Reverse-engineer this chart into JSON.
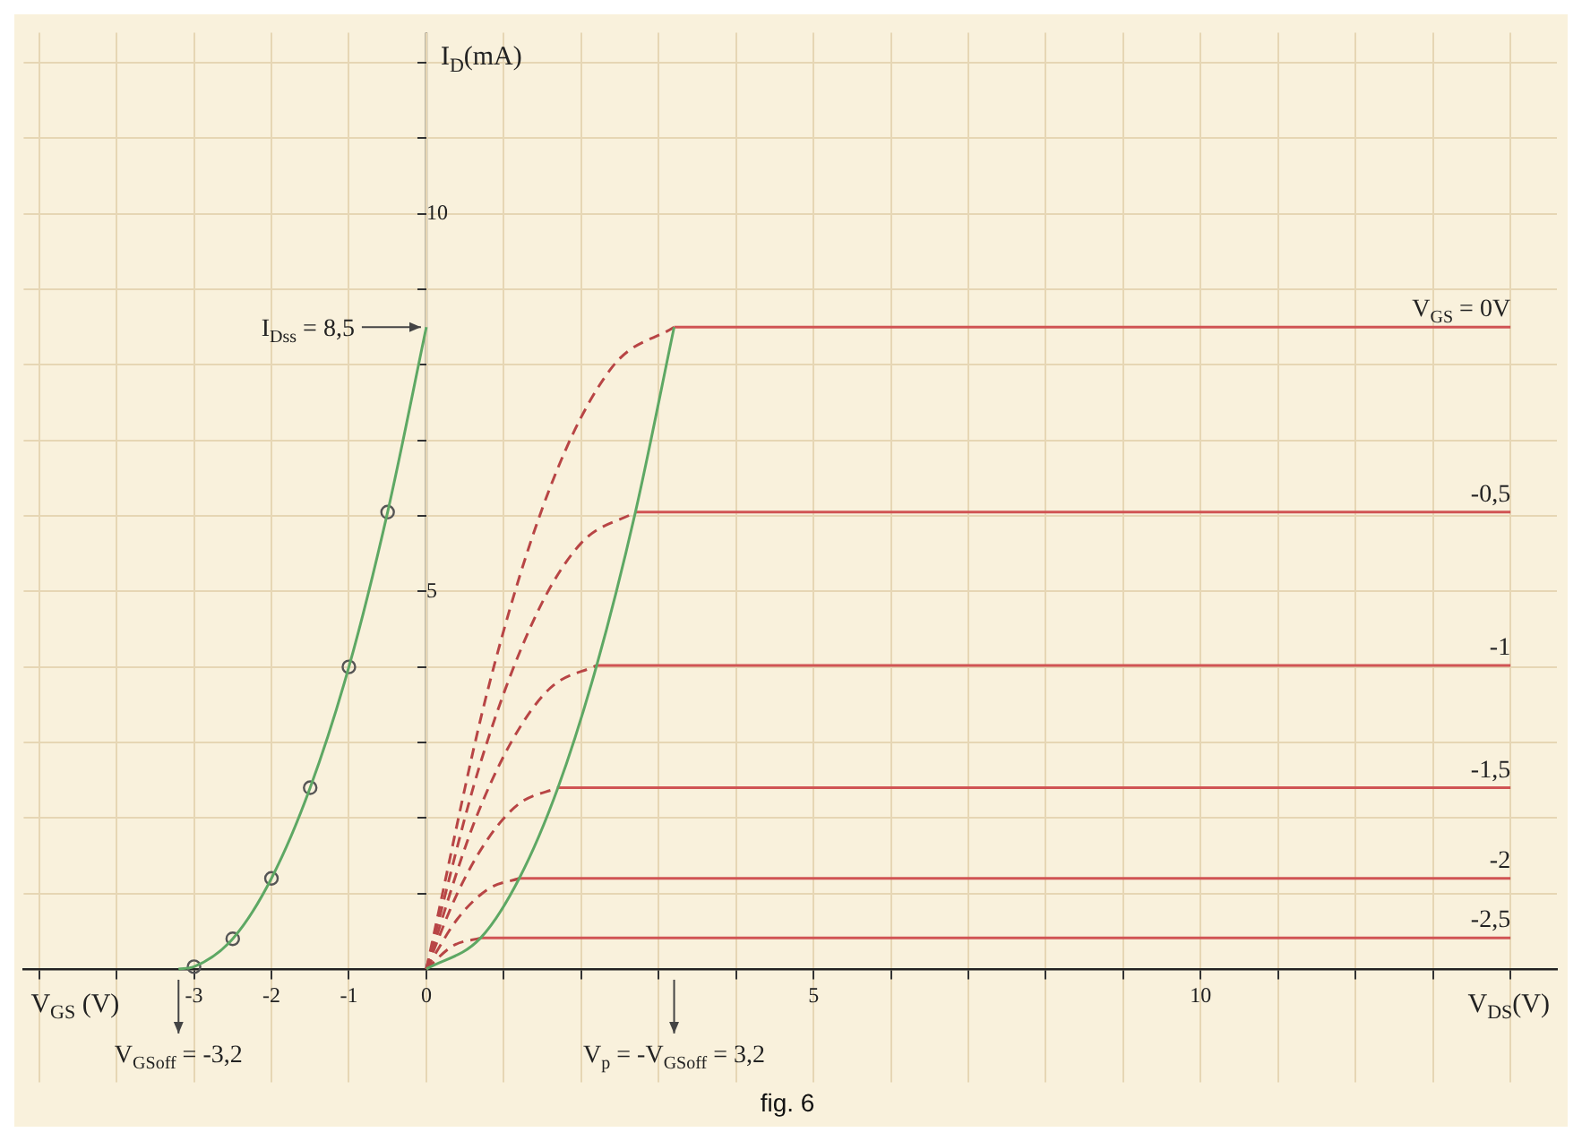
{
  "chart_data": {
    "type": "line",
    "title": "fig. 6",
    "xlabel": "V$_{DS}$(V)",
    "ylabel": "I$_{D}$(mA)",
    "annotations": [
      "V$_{GS}$ (V)",
      {
        "text": "I$_{Dss}$ = 8,5",
        "x": 0,
        "y": 8.5
      },
      {
        "text": "V$_{GSoff}$ = -3,2",
        "x": -3.2,
        "y": 0
      },
      "V$_{p}$ = -V$_{GSoff}$ = 3,2"
    ],
    "xlim": [
      -5.2,
      14.6
    ],
    "ylim": [
      -1.5,
      12.4
    ],
    "xticks": [
      {
        "value": -5,
        "label": null
      },
      {
        "value": -4,
        "label": null
      },
      -3,
      -2,
      -1,
      0,
      {
        "value": 1,
        "label": null
      },
      {
        "value": 2,
        "label": null
      },
      {
        "value": 3,
        "label": null
      },
      {
        "value": 4,
        "label": null
      },
      5,
      {
        "value": 6,
        "label": null
      },
      {
        "value": 7,
        "label": null
      },
      {
        "value": 8,
        "label": null
      },
      {
        "value": 9,
        "label": null
      },
      10,
      {
        "value": 11,
        "label": null
      },
      {
        "value": 12,
        "label": null
      },
      {
        "value": 13,
        "label": null
      },
      {
        "value": 14,
        "label": null
      }
    ],
    "yticks": [
      {
        "value": 1,
        "label": null
      },
      {
        "value": 2,
        "label": null
      },
      {
        "value": 3,
        "label": null
      },
      {
        "value": 4,
        "label": null
      },
      5,
      {
        "value": 6,
        "label": null
      },
      {
        "value": 7,
        "label": null
      },
      {
        "value": 8,
        "label": null
      },
      {
        "value": 9,
        "label": null
      },
      10,
      {
        "value": 11,
        "label": null
      },
      {
        "value": 12,
        "label": null
      }
    ],
    "grid": true,
    "series": [
      {
        "type": "line",
        "color": "#5ea864",
        "line_style": "solid",
        "marker": "none",
        "x": [
          -3.2,
          -3,
          -2.5,
          -2,
          -1.5,
          -1,
          -0.5,
          0
        ],
        "values": [
          0,
          0.03,
          0.4,
          1.2,
          2.4,
          4.0,
          6.05,
          8.5
        ]
      },
      {
        "type": "scatter",
        "color": "#555555",
        "marker": "circle",
        "x": [
          -3,
          -2.5,
          -2,
          -1.5,
          -1,
          -0.5
        ],
        "values": [
          0.03,
          0.4,
          1.2,
          2.4,
          4.0,
          6.05
        ]
      },
      {
        "type": "line",
        "color": "#5ea864",
        "line_style": "solid",
        "marker": "none",
        "x": [
          0,
          0.7,
          1.2,
          1.7,
          2.2,
          2.7,
          3.2
        ],
        "values": [
          0,
          0.41,
          1.2,
          2.4,
          4.02,
          6.05,
          8.5
        ]
      },
      {
        "type": "line",
        "color": "#b84545",
        "line_style": "dashed",
        "marker": "none",
        "x": [
          0,
          0.8,
          1.6,
          2.4,
          3.2
        ],
        "values": [
          0,
          3.72,
          6.38,
          7.97,
          8.5
        ]
      },
      {
        "type": "line",
        "color": "#b84545",
        "line_style": "dashed",
        "marker": "none",
        "x": [
          0,
          0.7,
          1.4,
          2.0,
          2.7
        ],
        "values": [
          0,
          2.73,
          4.65,
          5.64,
          6.05
        ]
      },
      {
        "type": "line",
        "color": "#b84545",
        "line_style": "dashed",
        "marker": "none",
        "x": [
          0,
          0.6,
          1.1,
          1.6,
          2.2
        ],
        "values": [
          0,
          1.89,
          3.01,
          3.72,
          4.02
        ]
      },
      {
        "type": "line",
        "color": "#b84545",
        "line_style": "dashed",
        "marker": "none",
        "x": [
          0,
          0.4,
          0.8,
          1.2,
          1.7
        ],
        "values": [
          0,
          1.0,
          1.73,
          2.19,
          2.4
        ]
      },
      {
        "type": "line",
        "color": "#b84545",
        "line_style": "dashed",
        "marker": "none",
        "x": [
          0,
          0.4,
          0.8,
          1.2
        ],
        "values": [
          0,
          0.66,
          1.06,
          1.2
        ]
      },
      {
        "type": "line",
        "color": "#b84545",
        "line_style": "dashed",
        "marker": "none",
        "x": [
          0,
          0.35,
          0.7
        ],
        "values": [
          0,
          0.31,
          0.41
        ]
      },
      {
        "name": "V$_{GS}$ = 0V",
        "type": "line",
        "color": "#d05454",
        "line_style": "solid",
        "marker": "none",
        "x": [
          3.2,
          14
        ],
        "values": [
          8.5,
          8.5
        ]
      },
      {
        "name": "-0,5",
        "type": "line",
        "color": "#d05454",
        "line_style": "solid",
        "marker": "none",
        "x": [
          2.7,
          14
        ],
        "values": [
          6.05,
          6.05
        ]
      },
      {
        "name": "-1",
        "type": "line",
        "color": "#d05454",
        "line_style": "solid",
        "marker": "none",
        "x": [
          2.2,
          14
        ],
        "values": [
          4.02,
          4.02
        ]
      },
      {
        "name": "-1,5",
        "type": "line",
        "color": "#d05454",
        "line_style": "solid",
        "marker": "none",
        "x": [
          1.7,
          14
        ],
        "values": [
          2.4,
          2.4
        ]
      },
      {
        "name": "-2",
        "type": "line",
        "color": "#d05454",
        "line_style": "solid",
        "marker": "none",
        "x": [
          1.2,
          14
        ],
        "values": [
          1.2,
          1.2
        ]
      },
      {
        "name": "-2,5",
        "type": "line",
        "color": "#d05454",
        "line_style": "solid",
        "marker": "none",
        "x": [
          0.7,
          14
        ],
        "values": [
          0.41,
          0.41
        ]
      }
    ]
  }
}
